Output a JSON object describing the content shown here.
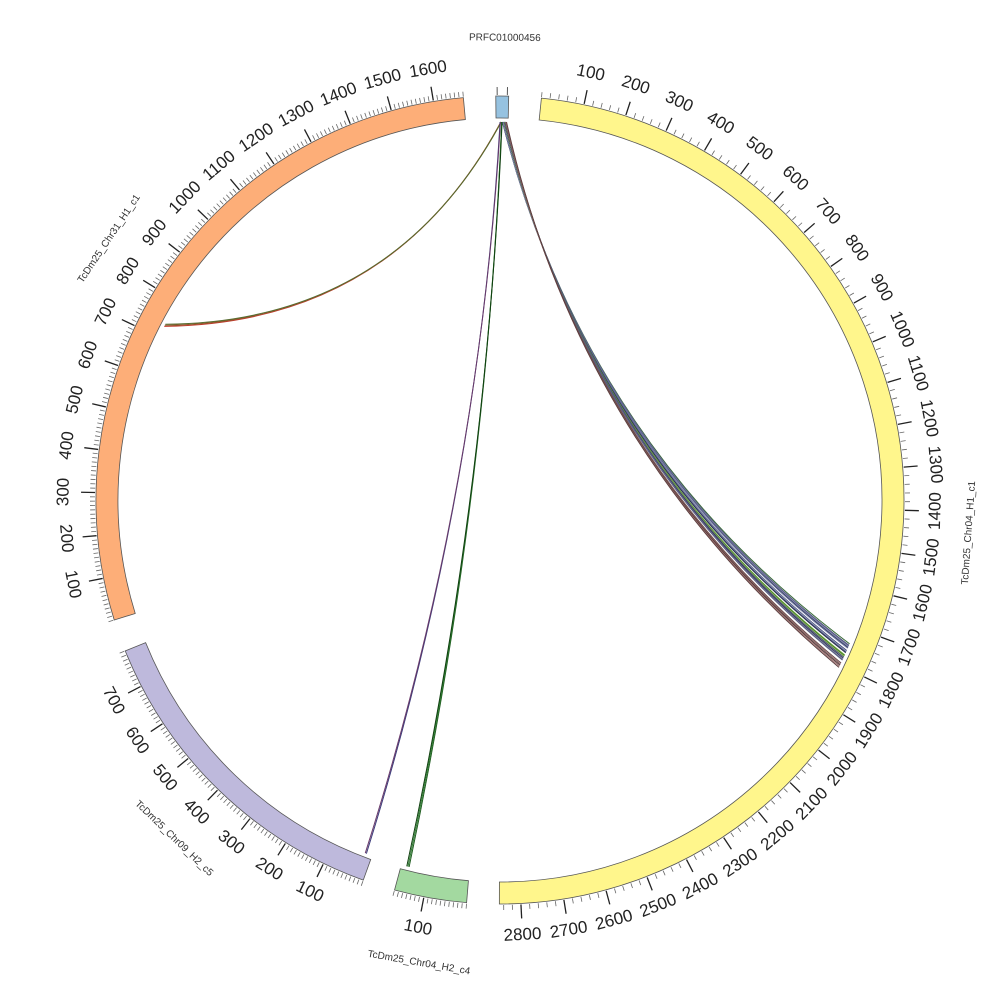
{
  "chart_data": {
    "type": "circos",
    "chromosomes": [
      {
        "id": "PRFC01000456",
        "label": "PRFC01000456",
        "length": 30,
        "color": "#96C2E0",
        "tick_step": null,
        "major_step": null,
        "tick_labels": []
      },
      {
        "id": "TcDm25_Chr04_H1_c1",
        "label": "TcDm25_Chr04_H1_c1",
        "length": 2850,
        "color": "#FFF68C",
        "tick_step": 20,
        "major_step": 100,
        "tick_labels": [
          "100",
          "200",
          "300",
          "400",
          "500",
          "600",
          "700",
          "800",
          "900",
          "1000",
          "1100",
          "1200",
          "1300",
          "1400",
          "1500",
          "1600",
          "1700",
          "1800",
          "1900",
          "2000",
          "2100",
          "2200",
          "2300",
          "2400",
          "2500",
          "2600",
          "2700",
          "2800"
        ]
      },
      {
        "id": "TcDm25_Chr04_H2_c4",
        "label": "TcDm25_Chr04_H2_c4",
        "length": 170,
        "color": "#A3D9A0",
        "tick_step": 10,
        "major_step": 100,
        "tick_labels": [
          "100"
        ]
      },
      {
        "id": "TcDm25_Chr09_H2_c5",
        "label": "TcDm25_Chr09_H2_c5",
        "length": 790,
        "color": "#BEB9DC",
        "tick_step": 10,
        "major_step": 100,
        "tick_labels": [
          "100",
          "200",
          "300",
          "400",
          "500",
          "600",
          "700"
        ]
      },
      {
        "id": "TcDm25_Chr31_H1_c1",
        "label": "TcDm25_Chr31_H1_c1",
        "length": 1670,
        "color": "#FDAE78",
        "tick_step": 10,
        "major_step": 100,
        "tick_labels": [
          "100",
          "200",
          "300",
          "400",
          "500",
          "600",
          "700",
          "800",
          "900",
          "1000",
          "1100",
          "1200",
          "1300",
          "1400",
          "1500",
          "1600"
        ]
      }
    ],
    "links": [
      {
        "from": "PRFC01000456",
        "from_pos": 16,
        "to": "TcDm25_Chr04_H1_c1",
        "to_pos": 1742,
        "color": "#3A6B3A"
      },
      {
        "from": "PRFC01000456",
        "from_pos": 16,
        "to": "TcDm25_Chr04_H1_c1",
        "to_pos": 1746,
        "color": "#4B4E78"
      },
      {
        "from": "PRFC01000456",
        "from_pos": 17,
        "to": "TcDm25_Chr04_H1_c1",
        "to_pos": 1748,
        "color": "#6B6E98"
      },
      {
        "from": "PRFC01000456",
        "from_pos": 17,
        "to": "TcDm25_Chr04_H1_c1",
        "to_pos": 1750,
        "color": "#8A8DB0"
      },
      {
        "from": "PRFC01000456",
        "from_pos": 18,
        "to": "TcDm25_Chr04_H1_c1",
        "to_pos": 1752,
        "color": "#2E3A5C"
      },
      {
        "from": "PRFC01000456",
        "from_pos": 18,
        "to": "TcDm25_Chr04_H1_c1",
        "to_pos": 1754,
        "color": "#7A7FA8"
      },
      {
        "from": "PRFC01000456",
        "from_pos": 19,
        "to": "TcDm25_Chr04_H1_c1",
        "to_pos": 1760,
        "color": "#3C4470"
      },
      {
        "from": "PRFC01000456",
        "from_pos": 19,
        "to": "TcDm25_Chr04_H1_c1",
        "to_pos": 1762,
        "color": "#9AA0C0"
      },
      {
        "from": "PRFC01000456",
        "from_pos": 20,
        "to": "TcDm25_Chr04_H1_c1",
        "to_pos": 1764,
        "color": "#55608A"
      },
      {
        "from": "PRFC01000456",
        "from_pos": 20,
        "to": "TcDm25_Chr04_H1_c1",
        "to_pos": 1766,
        "color": "#2B2F50"
      },
      {
        "from": "PRFC01000456",
        "from_pos": 21,
        "to": "TcDm25_Chr04_H1_c1",
        "to_pos": 1772,
        "color": "#7AB648"
      },
      {
        "from": "PRFC01000456",
        "from_pos": 21,
        "to": "TcDm25_Chr04_H1_c1",
        "to_pos": 1774,
        "color": "#3E6E2A"
      },
      {
        "from": "PRFC01000456",
        "from_pos": 21,
        "to": "TcDm25_Chr04_H1_c1",
        "to_pos": 1776,
        "color": "#9ACD5A"
      },
      {
        "from": "PRFC01000456",
        "from_pos": 22,
        "to": "TcDm25_Chr04_H1_c1",
        "to_pos": 1778,
        "color": "#4A5075"
      },
      {
        "from": "PRFC01000456",
        "from_pos": 22,
        "to": "TcDm25_Chr04_H1_c1",
        "to_pos": 1781,
        "color": "#2F3355"
      },
      {
        "from": "PRFC01000456",
        "from_pos": 23,
        "to": "TcDm25_Chr04_H1_c1",
        "to_pos": 1784,
        "color": "#6E7398"
      },
      {
        "from": "PRFC01000456",
        "from_pos": 23,
        "to": "TcDm25_Chr04_H1_c1",
        "to_pos": 1786,
        "color": "#5A5F82"
      },
      {
        "from": "PRFC01000456",
        "from_pos": 24,
        "to": "TcDm25_Chr04_H1_c1",
        "to_pos": 1794,
        "color": "#6B4A4A"
      },
      {
        "from": "PRFC01000456",
        "from_pos": 24,
        "to": "TcDm25_Chr04_H1_c1",
        "to_pos": 1797,
        "color": "#8A6060"
      },
      {
        "from": "PRFC01000456",
        "from_pos": 25,
        "to": "TcDm25_Chr04_H1_c1",
        "to_pos": 1800,
        "color": "#4E3838"
      },
      {
        "from": "PRFC01000456",
        "from_pos": 25,
        "to": "TcDm25_Chr04_H1_c1",
        "to_pos": 1803,
        "color": "#A07070"
      },
      {
        "from": "PRFC01000456",
        "from_pos": 26,
        "to": "TcDm25_Chr04_H1_c1",
        "to_pos": 1806,
        "color": "#5C3F3F"
      },
      {
        "from": "PRFC01000456",
        "from_pos": 12,
        "to": "TcDm25_Chr31_H1_c1",
        "to_pos": 730,
        "color": "#C0392B"
      },
      {
        "from": "PRFC01000456",
        "from_pos": 12,
        "to": "TcDm25_Chr31_H1_c1",
        "to_pos": 733,
        "color": "#8B5A2B"
      },
      {
        "from": "PRFC01000456",
        "from_pos": 13,
        "to": "TcDm25_Chr31_H1_c1",
        "to_pos": 736,
        "color": "#556B2F"
      },
      {
        "from": "PRFC01000456",
        "from_pos": 10,
        "to": "TcDm25_Chr09_H2_c5",
        "to_pos": 15,
        "color": "#3A3A7A"
      },
      {
        "from": "PRFC01000456",
        "from_pos": 11,
        "to": "TcDm25_Chr09_H2_c5",
        "to_pos": 18,
        "color": "#6A3A6A"
      },
      {
        "from": "PRFC01000456",
        "from_pos": 14,
        "to": "TcDm25_Chr04_H2_c4",
        "to_pos": 150,
        "color": "#1E5C1E"
      },
      {
        "from": "PRFC01000456",
        "from_pos": 14,
        "to": "TcDm25_Chr04_H2_c4",
        "to_pos": 153,
        "color": "#2E7D32"
      },
      {
        "from": "PRFC01000456",
        "from_pos": 15,
        "to": "TcDm25_Chr04_H2_c4",
        "to_pos": 156,
        "color": "#0F3F0F"
      }
    ]
  }
}
